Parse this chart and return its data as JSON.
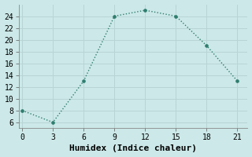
{
  "x": [
    0,
    3,
    6,
    9,
    12,
    15,
    18,
    21
  ],
  "y": [
    8,
    6,
    13,
    24,
    25,
    24,
    19,
    13
  ],
  "line_color": "#2e7d6e",
  "marker": "o",
  "marker_size": 2.5,
  "line_width": 1.0,
  "background_color": "#cce8e8",
  "grid_color": "#b8d4d4",
  "xlabel": "Humidex (Indice chaleur)",
  "xlabel_fontsize": 8,
  "xlim": [
    -0.3,
    22
  ],
  "ylim": [
    5,
    26
  ],
  "xticks": [
    0,
    3,
    6,
    9,
    12,
    15,
    18,
    21
  ],
  "yticks": [
    6,
    8,
    10,
    12,
    14,
    16,
    18,
    20,
    22,
    24
  ],
  "tick_fontsize": 7,
  "title": ""
}
